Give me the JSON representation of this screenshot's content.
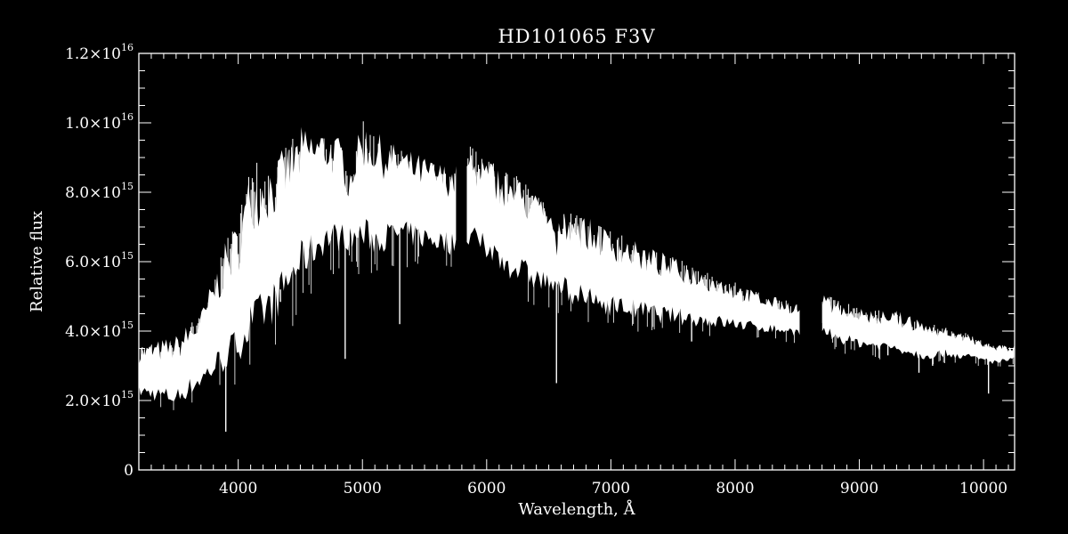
{
  "chart_data": {
    "type": "line",
    "title": "HD101065  F3V",
    "xlabel": "Wavelength, Å",
    "ylabel": "Relative flux",
    "xlim": [
      3200,
      10250
    ],
    "ylim": [
      0,
      1.2e+16
    ],
    "x_ticks": [
      {
        "value": 4000,
        "label": "4000"
      },
      {
        "value": 5000,
        "label": "5000"
      },
      {
        "value": 6000,
        "label": "6000"
      },
      {
        "value": 7000,
        "label": "7000"
      },
      {
        "value": 8000,
        "label": "8000"
      },
      {
        "value": 9000,
        "label": "9000"
      },
      {
        "value": 10000,
        "label": "10000"
      }
    ],
    "y_ticks": [
      {
        "value": 0,
        "mantissa": "0",
        "exponent": ""
      },
      {
        "value": 2000000000000000.0,
        "mantissa": "2.0×10",
        "exponent": "15"
      },
      {
        "value": 4000000000000000.0,
        "mantissa": "4.0×10",
        "exponent": "15"
      },
      {
        "value": 6000000000000000.0,
        "mantissa": "6.0×10",
        "exponent": "15"
      },
      {
        "value": 8000000000000000.0,
        "mantissa": "8.0×10",
        "exponent": "15"
      },
      {
        "value": 1e+16,
        "mantissa": "1.0×10",
        "exponent": "16"
      },
      {
        "value": 1.2e+16,
        "mantissa": "1.2×10",
        "exponent": "16"
      }
    ],
    "series": [
      {
        "color": "#ffffff",
        "segments": [
          {
            "upper_envelope": [
              [
                3200,
                3600000000000000.0
              ],
              [
                3500,
                3900000000000000.0
              ],
              [
                3700,
                4600000000000000.0
              ],
              [
                3900,
                6600000000000000.0
              ],
              [
                4000,
                7200000000000000.0
              ],
              [
                4100,
                8800000000000000.0
              ],
              [
                4300,
                9000000000000000.0
              ],
              [
                4500,
                9900000000000000.0
              ],
              [
                4700,
                9900000000000000.0
              ],
              [
                4850,
                9500000000000000.0
              ],
              [
                4880,
                8600000000000000.0
              ],
              [
                5000,
                1.01e+16
              ],
              [
                5200,
                9500000000000000.0
              ],
              [
                5400,
                9200000000000000.0
              ],
              [
                5600,
                8900000000000000.0
              ],
              [
                5760,
                8800000000000000.0
              ]
            ],
            "lower_envelope": [
              [
                3200,
                2000000000000000.0
              ],
              [
                3500,
                1700000000000000.0
              ],
              [
                3700,
                2200000000000000.0
              ],
              [
                3900,
                2600000000000000.0
              ],
              [
                4100,
                3200000000000000.0
              ],
              [
                4300,
                4000000000000000.0
              ],
              [
                4500,
                5200000000000000.0
              ],
              [
                4700,
                6000000000000000.0
              ],
              [
                4900,
                6200000000000000.0
              ],
              [
                5100,
                6000000000000000.0
              ],
              [
                5300,
                6300000000000000.0
              ],
              [
                5500,
                6200000000000000.0
              ],
              [
                5760,
                6000000000000000.0
              ]
            ]
          },
          {
            "upper_envelope": [
              [
                5840,
                9400000000000000.0
              ],
              [
                6000,
                9000000000000000.0
              ],
              [
                6200,
                8600000000000000.0
              ],
              [
                6400,
                8000000000000000.0
              ],
              [
                6520,
                7600000000000000.0
              ],
              [
                6562,
                6600000000000000.0
              ],
              [
                6600,
                7700000000000000.0
              ],
              [
                6800,
                7300000000000000.0
              ],
              [
                7000,
                6900000000000000.0
              ],
              [
                7400,
                6300000000000000.0
              ],
              [
                7800,
                5700000000000000.0
              ],
              [
                8200,
                5100000000000000.0
              ],
              [
                8520,
                4800000000000000.0
              ]
            ],
            "lower_envelope": [
              [
                5840,
                6200000000000000.0
              ],
              [
                6000,
                5800000000000000.0
              ],
              [
                6200,
                5300000000000000.0
              ],
              [
                6400,
                5000000000000000.0
              ],
              [
                6600,
                4800000000000000.0
              ],
              [
                6800,
                4400000000000000.0
              ],
              [
                7000,
                4300000000000000.0
              ],
              [
                7400,
                4100000000000000.0
              ],
              [
                7800,
                4000000000000000.0
              ],
              [
                8200,
                3900000000000000.0
              ],
              [
                8520,
                3800000000000000.0
              ]
            ]
          },
          {
            "upper_envelope": [
              [
                8700,
                5100000000000000.0
              ],
              [
                8900,
                4800000000000000.0
              ],
              [
                9100,
                4600000000000000.0
              ],
              [
                9300,
                4600000000000000.0
              ],
              [
                9500,
                4300000000000000.0
              ],
              [
                9700,
                4100000000000000.0
              ],
              [
                9900,
                3900000000000000.0
              ],
              [
                10100,
                3600000000000000.0
              ],
              [
                10250,
                3600000000000000.0
              ]
            ],
            "lower_envelope": [
              [
                8700,
                3800000000000000.0
              ],
              [
                8900,
                3500000000000000.0
              ],
              [
                9100,
                3400000000000000.0
              ],
              [
                9300,
                3300000000000000.0
              ],
              [
                9500,
                3100000000000000.0
              ],
              [
                9700,
                3200000000000000.0
              ],
              [
                9900,
                3100000000000000.0
              ],
              [
                10100,
                3000000000000000.0
              ],
              [
                10250,
                3100000000000000.0
              ]
            ]
          }
        ],
        "absorption_lines": [
          {
            "x": 3900,
            "y": 1100000000000000.0
          },
          {
            "x": 4340,
            "y": 5200000000000000.0
          },
          {
            "x": 4861,
            "y": 3200000000000000.0
          },
          {
            "x": 5300,
            "y": 4200000000000000.0
          },
          {
            "x": 6562,
            "y": 2500000000000000.0
          },
          {
            "x": 7650,
            "y": 3700000000000000.0
          },
          {
            "x": 9230,
            "y": 3300000000000000.0
          },
          {
            "x": 9480,
            "y": 2800000000000000.0
          },
          {
            "x": 9590,
            "y": 3000000000000000.0
          },
          {
            "x": 10040,
            "y": 2200000000000000.0
          }
        ],
        "gaps": [
          [
            5770,
            5830
          ],
          [
            8520,
            8700
          ]
        ]
      }
    ]
  }
}
